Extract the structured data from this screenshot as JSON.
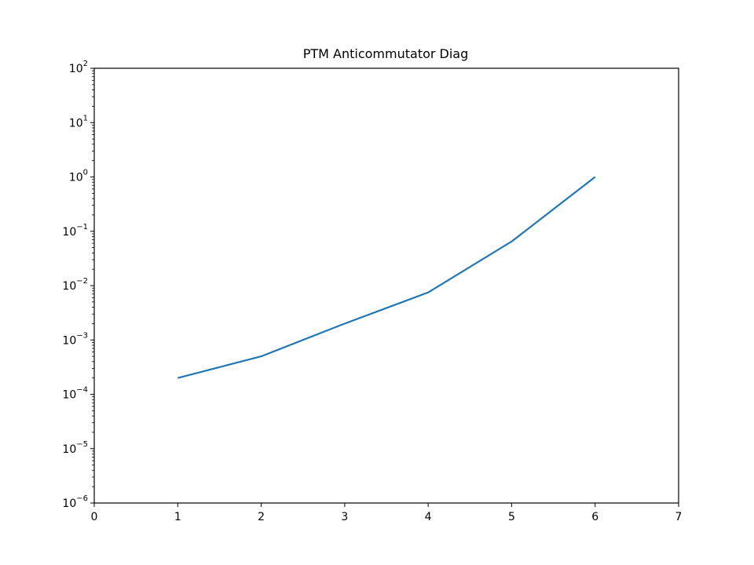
{
  "chart_data": {
    "type": "line",
    "title": "PTM Anticommutator Diag",
    "xlabel": "",
    "ylabel": "",
    "x_scale": "linear",
    "y_scale": "log",
    "xlim": [
      0,
      7
    ],
    "ylim": [
      1e-06,
      100
    ],
    "x_ticks": [
      0,
      1,
      2,
      3,
      4,
      5,
      6,
      7
    ],
    "x_tick_labels": [
      "0",
      "1",
      "2",
      "3",
      "4",
      "5",
      "6",
      "7"
    ],
    "y_ticks": [
      1e-06,
      1e-05,
      0.0001,
      0.001,
      0.01,
      0.1,
      1,
      10,
      100
    ],
    "y_tick_labels": [
      {
        "base": "10",
        "exp": "−6"
      },
      {
        "base": "10",
        "exp": "−5"
      },
      {
        "base": "10",
        "exp": "−4"
      },
      {
        "base": "10",
        "exp": "−3"
      },
      {
        "base": "10",
        "exp": "−2"
      },
      {
        "base": "10",
        "exp": "−1"
      },
      {
        "base": "10",
        "exp": "0"
      },
      {
        "base": "10",
        "exp": "1"
      },
      {
        "base": "10",
        "exp": "2"
      }
    ],
    "grid": false,
    "series": [
      {
        "color": "#1f77b4",
        "x": [
          1,
          2,
          3,
          4,
          5,
          6
        ],
        "y": [
          0.0002,
          0.0005,
          0.002,
          0.0075,
          0.065,
          1.0
        ]
      }
    ]
  }
}
